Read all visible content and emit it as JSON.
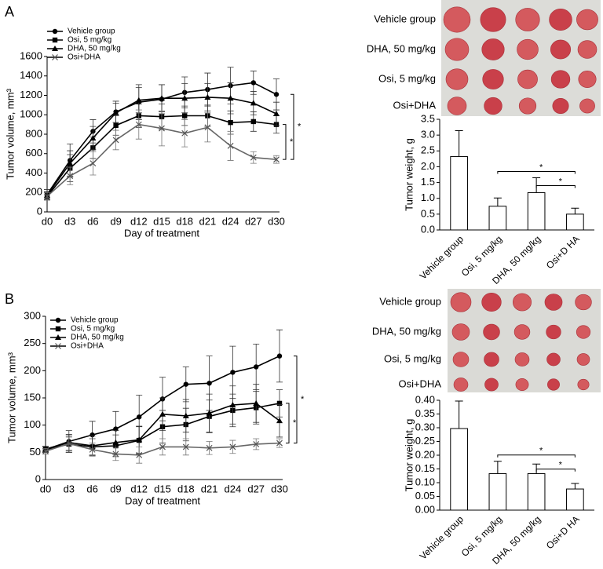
{
  "panels": [
    {
      "letter": "A",
      "photo_labels": [
        "Vehicle group",
        "DHA, 50 mg/kg",
        "Osi, 5 mg/kg",
        "Osi+DHA"
      ]
    },
    {
      "letter": "B",
      "photo_labels": [
        "Vehicle group",
        "DHA, 50 mg/kg",
        "Osi, 5 mg/kg",
        "Osi+DHA"
      ]
    }
  ],
  "chart_data": [
    {
      "type": "line",
      "x_label": "Day of treatment",
      "y_label": "Tumor volume, mm³",
      "categories": [
        "d0",
        "d3",
        "d6",
        "d9",
        "d12",
        "d15",
        "d18",
        "d21",
        "d24",
        "d27",
        "d30"
      ],
      "ylim": [
        0,
        1600
      ],
      "yticks": [
        0,
        200,
        400,
        600,
        800,
        1000,
        1200,
        1400,
        1600
      ],
      "annotations": [
        "*",
        "*"
      ],
      "series": [
        {
          "name": "Vehicle group",
          "color": "#000000",
          "values": [
            180,
            530,
            830,
            1030,
            1130,
            1160,
            1230,
            1260,
            1300,
            1330,
            1210
          ],
          "errors": [
            50,
            170,
            120,
            110,
            180,
            150,
            160,
            170,
            190,
            120,
            160
          ]
        },
        {
          "name": "Osi, 5 mg/kg",
          "color": "#000000",
          "values": [
            160,
            450,
            660,
            890,
            990,
            980,
            990,
            990,
            920,
            930,
            900
          ],
          "errors": [
            40,
            140,
            110,
            100,
            120,
            130,
            100,
            110,
            120,
            100,
            90
          ]
        },
        {
          "name": "DHA, 50 mg/kg",
          "color": "#000000",
          "values": [
            170,
            500,
            760,
            1020,
            1150,
            1170,
            1170,
            1180,
            1170,
            1120,
            1010
          ],
          "errors": [
            40,
            130,
            120,
            100,
            130,
            140,
            150,
            140,
            160,
            120,
            120
          ]
        },
        {
          "name": "Osi+DHA",
          "color": "#000000",
          "values": [
            160,
            370,
            500,
            740,
            900,
            860,
            810,
            870,
            680,
            560,
            540
          ],
          "errors": [
            40,
            90,
            120,
            100,
            150,
            180,
            140,
            150,
            150,
            60,
            40
          ]
        }
      ]
    },
    {
      "type": "bar",
      "y_label": "Tumor weight, g",
      "categories": [
        "Vehicle group",
        "Osi, 5 mg/kg",
        "DHA, 50 mg/kg",
        "Osi+D HA"
      ],
      "values": [
        2.32,
        0.75,
        1.18,
        0.5
      ],
      "errors": [
        0.82,
        0.26,
        0.47,
        0.19
      ],
      "color": "#ffffff",
      "ylim": [
        0,
        3.5
      ],
      "yticks": [
        {
          "value": 0,
          "label": "0.0"
        },
        0.5,
        {
          "value": 1,
          "label": "1.0"
        },
        1.5,
        {
          "value": 2,
          "label": "2.0"
        },
        2.5,
        {
          "value": 3,
          "label": "3.0"
        },
        3.5
      ],
      "annotations": [
        "*",
        "*"
      ]
    },
    {
      "type": "line",
      "x_label": "Day of treatment",
      "y_label": "Tumor volume, mm³",
      "categories": [
        "d0",
        "d3",
        "d6",
        "d9",
        "d12",
        "d15",
        "d18",
        "d21",
        "d24",
        "d27",
        "d30"
      ],
      "ylim": [
        0,
        300
      ],
      "yticks": [
        0,
        50,
        100,
        150,
        200,
        250,
        300
      ],
      "annotations": [
        "*",
        "*"
      ],
      "series": [
        {
          "name": "Vehicle group",
          "color": "#000000",
          "values": [
            55,
            70,
            82,
            93,
            115,
            148,
            175,
            177,
            197,
            207,
            227
          ],
          "errors": [
            5,
            20,
            25,
            32,
            40,
            40,
            32,
            50,
            48,
            42,
            48
          ]
        },
        {
          "name": "Osi, 5 mg/kg",
          "color": "#000000",
          "values": [
            55,
            65,
            60,
            62,
            72,
            97,
            101,
            116,
            127,
            132,
            140
          ],
          "errors": [
            5,
            15,
            15,
            20,
            25,
            30,
            30,
            30,
            30,
            30,
            25
          ]
        },
        {
          "name": "DHA, 50 mg/kg",
          "color": "#000000",
          "values": [
            56,
            68,
            62,
            68,
            73,
            120,
            117,
            122,
            137,
            140,
            108
          ],
          "errors": [
            5,
            15,
            18,
            22,
            25,
            30,
            30,
            35,
            35,
            35,
            30
          ]
        },
        {
          "name": "Osi+DHA",
          "color": "#000000",
          "values": [
            52,
            66,
            55,
            47,
            45,
            60,
            60,
            58,
            60,
            65,
            67
          ],
          "errors": [
            5,
            12,
            12,
            12,
            15,
            15,
            15,
            12,
            12,
            10,
            8
          ]
        }
      ]
    },
    {
      "type": "bar",
      "y_label": "Tumor weight, g",
      "categories": [
        "Vehicle group",
        "Osi, 5 mg/kg",
        "DHA, 50 mg/kg",
        "Osi+D HA"
      ],
      "values": [
        0.297,
        0.133,
        0.133,
        0.077
      ],
      "errors": [
        0.1,
        0.045,
        0.035,
        0.02
      ],
      "color": "#ffffff",
      "ylim": [
        0,
        0.4
      ],
      "yticks": [
        {
          "value": 0,
          "label": "0.00"
        },
        0.05,
        {
          "value": 0.1,
          "label": "0.10"
        },
        0.15,
        {
          "value": 0.2,
          "label": "0.20"
        },
        0.25,
        {
          "value": 0.3,
          "label": "0.30"
        },
        0.35,
        {
          "value": 0.4,
          "label": "0.40"
        }
      ],
      "annotations": [
        "*",
        "*"
      ]
    }
  ]
}
